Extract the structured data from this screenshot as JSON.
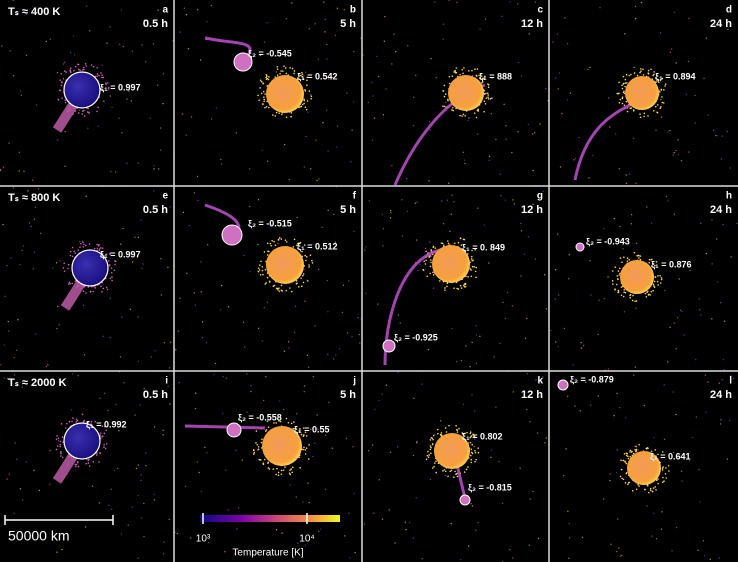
{
  "rows": [
    {
      "label": "Tₛ ≈ 400 K"
    },
    {
      "label": "Tₛ ≈ 800 K"
    },
    {
      "label": "Tₛ ≈ 2000 K"
    }
  ],
  "panels": [
    {
      "letter": "a",
      "time": "0.5 h",
      "labels": [
        "ξ₁ = 0.997"
      ]
    },
    {
      "letter": "b",
      "time": "5 h",
      "labels": [
        "ξ₂ = -0.545",
        "ξ₁ = 0.542"
      ]
    },
    {
      "letter": "c",
      "time": "12 h",
      "labels": [
        "ξ₁ = 888"
      ]
    },
    {
      "letter": "d",
      "time": "24 h",
      "labels": [
        "ξ₁ = 0.894"
      ]
    },
    {
      "letter": "e",
      "time": "0.5 h",
      "labels": [
        "ξ₁ = 0.997"
      ]
    },
    {
      "letter": "f",
      "time": "5 h",
      "labels": [
        "ξ₂ = -0.515",
        "ξ₁ = 0.512"
      ]
    },
    {
      "letter": "g",
      "time": "12 h",
      "labels": [
        "ξ₁ = 0. 849",
        "ξ₂ = -0.925"
      ]
    },
    {
      "letter": "h",
      "time": "24 h",
      "labels": [
        "ξ₂ = -0.943",
        "ξ₁ = 0.876"
      ]
    },
    {
      "letter": "i",
      "time": "0.5 h",
      "labels": [
        "ξ₁ = 0.992"
      ]
    },
    {
      "letter": "j",
      "time": "5 h",
      "labels": [
        "ξ₂ = -0.558",
        "ξ₁ = 0.55"
      ]
    },
    {
      "letter": "k",
      "time": "12 h",
      "labels": [
        "ξ₁ = 0.802",
        "ξ₂ = -0.815"
      ]
    },
    {
      "letter": "l",
      "time": "24 h",
      "labels": [
        "ξ₂ = -0.879",
        "ξ₁ = 0.641"
      ]
    }
  ],
  "scale_bar": "50000 km",
  "colorbar": {
    "ticks": [
      "10³",
      "10⁴"
    ],
    "label": "Temperature [K]"
  }
}
